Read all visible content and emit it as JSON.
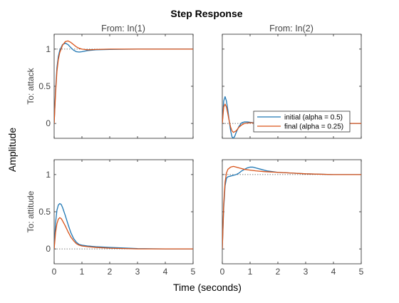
{
  "chart_data": {
    "type": "line",
    "title": "Step Response",
    "xlabel": "Time (seconds)",
    "ylabel": "Amplitude",
    "input_labels": [
      "From: In(1)",
      "From: In(2)"
    ],
    "output_labels": [
      "To: attack",
      "To: attitude"
    ],
    "xlim": [
      0,
      5
    ],
    "ylim": [
      -0.2,
      1.2
    ],
    "xticks": [
      0,
      1,
      2,
      3,
      4,
      5
    ],
    "yticks": [
      0,
      0.5,
      1
    ],
    "colors": {
      "initial": "#1f77b4",
      "final": "#d95319",
      "reference": "#555555"
    },
    "legend": {
      "placement": "attack / In(2) panel, lower-right",
      "entries": [
        "initial (alpha = 0.5)",
        "final (alpha = 0.25)"
      ]
    },
    "panels": [
      {
        "row": 0,
        "col": 0,
        "reference": 1,
        "series": [
          {
            "x": [
              0,
              0.05,
              0.1,
              0.15,
              0.2,
              0.3,
              0.4,
              0.5,
              0.6,
              0.7,
              0.8,
              0.9,
              1.0,
              1.2,
              1.5,
              2.0,
              3.0,
              4.0,
              5.0
            ],
            "y": [
              0,
              0.45,
              0.75,
              0.9,
              0.98,
              1.06,
              1.08,
              1.06,
              1.02,
              0.985,
              0.965,
              0.96,
              0.965,
              0.98,
              0.99,
              0.995,
              1.0,
              1.0,
              1.0
            ]
          },
          {
            "x": [
              0,
              0.05,
              0.1,
              0.15,
              0.2,
              0.3,
              0.4,
              0.5,
              0.6,
              0.7,
              0.8,
              0.9,
              1.0,
              1.2,
              1.5,
              2.0,
              3.0,
              4.0,
              5.0
            ],
            "y": [
              0,
              0.4,
              0.7,
              0.86,
              0.95,
              1.05,
              1.1,
              1.11,
              1.09,
              1.06,
              1.03,
              1.01,
              1.0,
              0.99,
              0.995,
              1.0,
              1.0,
              1.0,
              1.0
            ]
          }
        ]
      },
      {
        "row": 0,
        "col": 1,
        "reference": 0,
        "series": [
          {
            "x": [
              0,
              0.05,
              0.1,
              0.15,
              0.2,
              0.25,
              0.3,
              0.35,
              0.4,
              0.45,
              0.5,
              0.6,
              0.7,
              0.8,
              0.9,
              1.0,
              1.2,
              1.5,
              2.0,
              3.0,
              5.0
            ],
            "y": [
              0,
              0.3,
              0.36,
              0.3,
              0.18,
              0.03,
              -0.1,
              -0.18,
              -0.2,
              -0.17,
              -0.12,
              -0.04,
              0.01,
              0.02,
              0.02,
              0.015,
              0.005,
              0.0,
              0.0,
              0.0,
              0.0
            ]
          },
          {
            "x": [
              0,
              0.05,
              0.1,
              0.15,
              0.2,
              0.25,
              0.3,
              0.35,
              0.4,
              0.5,
              0.6,
              0.7,
              0.8,
              0.9,
              1.0,
              1.2,
              1.5,
              2.0,
              3.0,
              5.0
            ],
            "y": [
              0,
              0.22,
              0.26,
              0.22,
              0.13,
              0.03,
              -0.05,
              -0.1,
              -0.12,
              -0.1,
              -0.05,
              -0.02,
              0.0,
              0.005,
              0.01,
              0.005,
              0.0,
              0.0,
              0.0,
              0.0
            ]
          }
        ]
      },
      {
        "row": 1,
        "col": 0,
        "reference": 0,
        "series": [
          {
            "x": [
              0,
              0.05,
              0.1,
              0.15,
              0.2,
              0.25,
              0.3,
              0.4,
              0.5,
              0.6,
              0.7,
              0.8,
              0.9,
              1.0,
              1.2,
              1.5,
              2.0,
              3.0,
              4.0,
              5.0
            ],
            "y": [
              0,
              0.35,
              0.52,
              0.59,
              0.61,
              0.6,
              0.56,
              0.45,
              0.33,
              0.22,
              0.14,
              0.09,
              0.06,
              0.05,
              0.04,
              0.03,
              0.02,
              0.005,
              0.0,
              0.0
            ]
          },
          {
            "x": [
              0,
              0.05,
              0.1,
              0.15,
              0.2,
              0.25,
              0.3,
              0.4,
              0.5,
              0.6,
              0.7,
              0.8,
              0.9,
              1.0,
              1.2,
              1.5,
              2.0,
              3.0,
              4.0,
              5.0
            ],
            "y": [
              0,
              0.22,
              0.34,
              0.4,
              0.42,
              0.41,
              0.38,
              0.31,
              0.23,
              0.16,
              0.11,
              0.07,
              0.05,
              0.04,
              0.03,
              0.02,
              0.01,
              0.0,
              0.0,
              0.0
            ]
          }
        ]
      },
      {
        "row": 1,
        "col": 1,
        "reference": 1,
        "series": [
          {
            "x": [
              0,
              0.05,
              0.1,
              0.15,
              0.2,
              0.3,
              0.4,
              0.5,
              0.6,
              0.7,
              0.8,
              0.9,
              1.0,
              1.1,
              1.2,
              1.4,
              1.6,
              2.0,
              2.5,
              3.0,
              4.0,
              5.0
            ],
            "y": [
              0,
              0.55,
              0.85,
              0.95,
              0.97,
              0.98,
              0.99,
              1.0,
              1.02,
              1.05,
              1.07,
              1.09,
              1.1,
              1.1,
              1.09,
              1.07,
              1.05,
              1.03,
              1.02,
              1.01,
              1.0,
              1.0
            ]
          },
          {
            "x": [
              0,
              0.05,
              0.1,
              0.15,
              0.2,
              0.3,
              0.4,
              0.5,
              0.6,
              0.7,
              0.8,
              1.0,
              1.2,
              1.5,
              2.0,
              2.5,
              3.0,
              4.0,
              5.0
            ],
            "y": [
              0,
              0.6,
              0.9,
              1.02,
              1.07,
              1.1,
              1.11,
              1.1,
              1.09,
              1.08,
              1.07,
              1.06,
              1.05,
              1.04,
              1.03,
              1.02,
              1.01,
              1.0,
              1.0
            ]
          }
        ]
      }
    ]
  }
}
